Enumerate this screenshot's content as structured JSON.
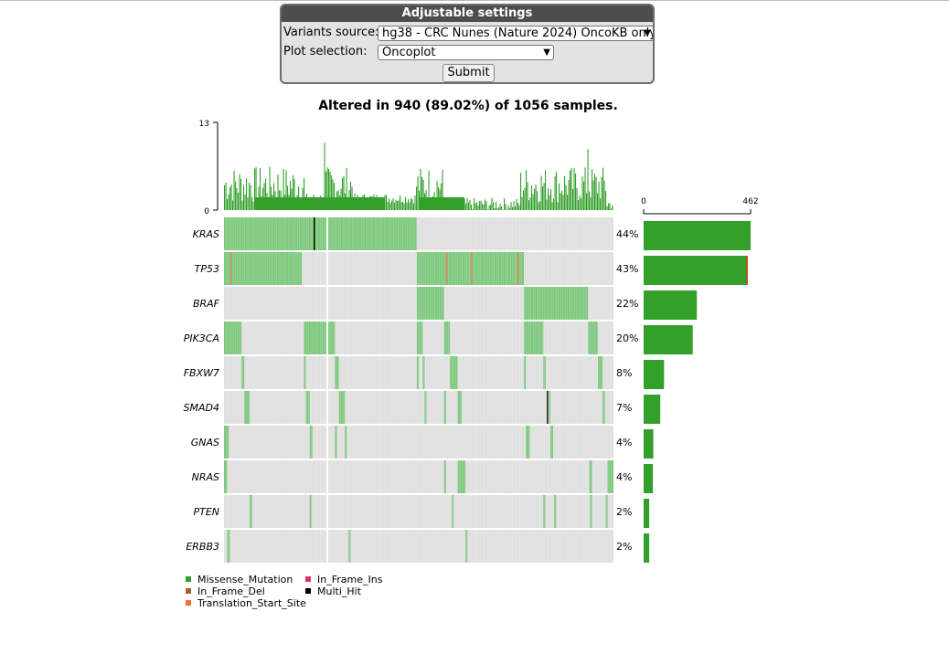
{
  "settings": {
    "title": "Adjustable settings",
    "variants_label": "Variants source:",
    "variants_value": "hg38 - CRC Nunes (Nature 2024) OncoKB only",
    "plot_label": "Plot selection:",
    "plot_value": "Oncoplot",
    "submit_label": "Submit"
  },
  "chart_data": {
    "type": "heatmap",
    "title": "Altered in 940 (89.02%) of 1056 samples.",
    "top_axis": {
      "ticks": [
        "0",
        "13"
      ],
      "range": [
        0,
        13
      ]
    },
    "side_axis": {
      "ticks": [
        "0",
        "462"
      ],
      "range": [
        0,
        462
      ]
    },
    "genes": [
      "KRAS",
      "TP53",
      "BRAF",
      "PIK3CA",
      "FBXW7",
      "SMAD4",
      "GNAS",
      "NRAS",
      "PTEN",
      "ERBB3"
    ],
    "percentages": [
      "44%",
      "43%",
      "22%",
      "20%",
      "8%",
      "7%",
      "4%",
      "4%",
      "2%",
      "2%"
    ],
    "gene_counts": [
      462,
      450,
      230,
      212,
      88,
      72,
      42,
      40,
      24,
      24
    ],
    "legend": [
      {
        "label": "Missense_Mutation",
        "color": "#33a02c"
      },
      {
        "label": "In_Frame_Ins",
        "color": "#e0326e"
      },
      {
        "label": "In_Frame_Del",
        "color": "#b05a28"
      },
      {
        "label": "Multi_Hit",
        "color": "#000000"
      },
      {
        "label": "Translation_Start_Site",
        "color": "#f46d43"
      }
    ],
    "colors": {
      "missense": "#33a02c",
      "missense_cell": "#7fc97f",
      "background_cell": "#e0e0e0",
      "in_frame_del": "#b05a28"
    },
    "legend_placement": "bottom-left"
  }
}
